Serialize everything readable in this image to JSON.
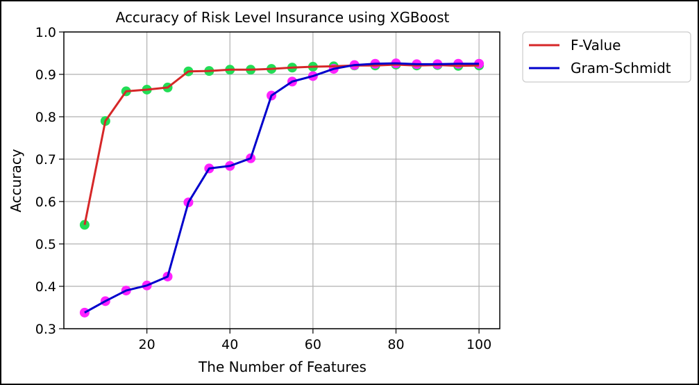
{
  "chart_data": {
    "type": "line",
    "title": "Accuracy of Risk Level Insurance using XGBoost",
    "title_color": "#0000cc",
    "xlabel": "The Number of Features",
    "ylabel": "Accuracy",
    "xlim": [
      0,
      105
    ],
    "ylim": [
      0.3,
      1.0
    ],
    "xticks": [
      20,
      40,
      60,
      80,
      100
    ],
    "yticks": [
      0.3,
      0.4,
      0.5,
      0.6,
      0.7,
      0.8,
      0.9,
      1.0
    ],
    "xtick_labels": [
      "20",
      "40",
      "60",
      "80",
      "100"
    ],
    "ytick_labels": [
      "0.3",
      "0.4",
      "0.5",
      "0.6",
      "0.7",
      "0.8",
      "0.9",
      "1.0"
    ],
    "grid": true,
    "legend_position": "outside-top-right",
    "x": [
      5,
      10,
      15,
      20,
      25,
      30,
      35,
      40,
      45,
      50,
      55,
      60,
      65,
      70,
      75,
      80,
      85,
      90,
      95,
      100
    ],
    "series": [
      {
        "name": "F-Value",
        "line_color": "#d62728",
        "marker_color": "#22dd55",
        "values": [
          0.545,
          0.79,
          0.86,
          0.864,
          0.869,
          0.907,
          0.908,
          0.911,
          0.911,
          0.913,
          0.916,
          0.918,
          0.919,
          0.921,
          0.921,
          0.923,
          0.921,
          0.922,
          0.92,
          0.921
        ]
      },
      {
        "name": "Gram-Schmidt",
        "line_color": "#0000cc",
        "marker_color": "#ff22ff",
        "values": [
          0.338,
          0.365,
          0.39,
          0.402,
          0.423,
          0.598,
          0.678,
          0.684,
          0.702,
          0.85,
          0.883,
          0.896,
          0.913,
          0.922,
          0.925,
          0.926,
          0.924,
          0.924,
          0.925,
          0.925
        ]
      }
    ]
  }
}
